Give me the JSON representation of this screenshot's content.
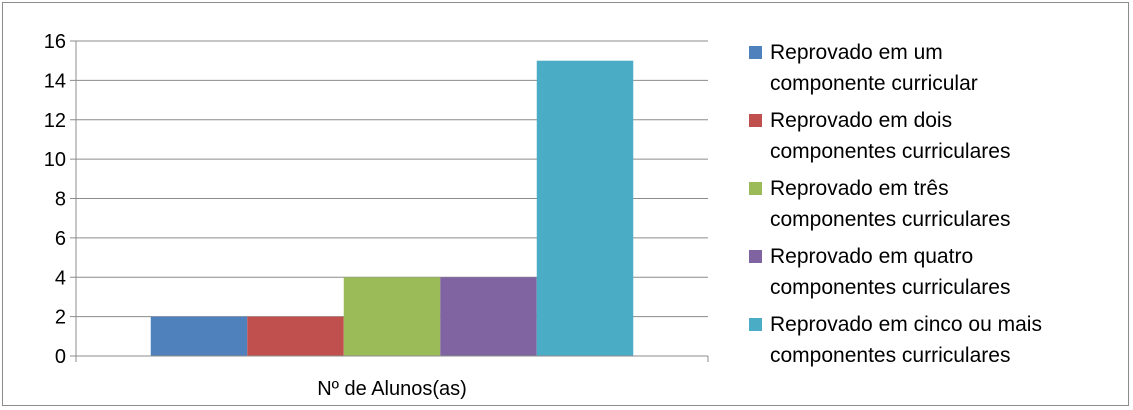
{
  "chart_data": {
    "type": "bar",
    "title": "",
    "xlabel": "",
    "ylabel": "",
    "categories": [
      "Nº de Alunos(as)"
    ],
    "ylim": [
      0,
      16
    ],
    "yticks": [
      0,
      2,
      4,
      6,
      8,
      10,
      12,
      14,
      16
    ],
    "grid": true,
    "legend_position": "right",
    "series": [
      {
        "name": "Reprovado em um componente curricular",
        "lines": [
          "Reprovado em um",
          "componente curricular"
        ],
        "values": [
          2
        ],
        "color": "#4f81bd"
      },
      {
        "name": "Reprovado em dois componentes curriculares",
        "lines": [
          "Reprovado em dois",
          "componentes curriculares"
        ],
        "values": [
          2
        ],
        "color": "#c0504d"
      },
      {
        "name": "Reprovado em três componentes curriculares",
        "lines": [
          "Reprovado em três",
          "componentes curriculares"
        ],
        "values": [
          4
        ],
        "color": "#9bbb59"
      },
      {
        "name": "Reprovado em quatro componentes curriculares",
        "lines": [
          "Reprovado em quatro",
          "componentes curriculares"
        ],
        "values": [
          4
        ],
        "color": "#8064a2"
      },
      {
        "name": "Reprovado em cinco ou mais componentes curriculares",
        "lines": [
          "Reprovado em cinco ou mais",
          "componentes curriculares"
        ],
        "values": [
          15
        ],
        "color": "#4bacc6"
      }
    ]
  }
}
